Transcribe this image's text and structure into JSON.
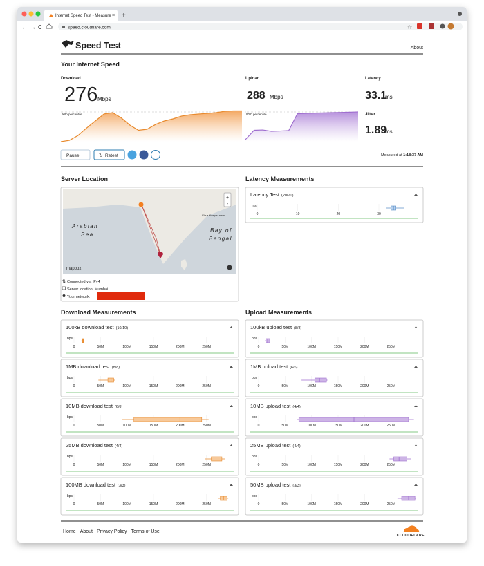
{
  "browser": {
    "tab_title": "Internet Speed Test - Measure",
    "url": "speed.cloudflare.com"
  },
  "header": {
    "title": "Speed Test",
    "about": "About"
  },
  "summary": {
    "heading": "Your Internet Speed",
    "download": {
      "label": "Download",
      "value": 276,
      "unit": "Mbps"
    },
    "upload": {
      "label": "Upload",
      "value": 288,
      "unit": "Mbps"
    },
    "latency": {
      "label": "Latency",
      "value": 33.1,
      "unit": "ms"
    },
    "jitter": {
      "label": "Jitter",
      "value": 1.89,
      "unit": "ms"
    }
  },
  "speed_charts": {
    "percentile_label": "90th percentile",
    "ylim": [
      0,
      300
    ],
    "download": [
      0,
      13,
      60,
      133,
      200,
      267,
      280,
      230,
      160,
      110,
      120,
      167,
      200,
      220,
      247,
      260,
      267,
      273,
      280,
      293,
      297,
      297
    ],
    "upload": [
      20,
      110,
      113,
      100,
      103,
      107,
      270,
      273,
      276,
      278,
      280,
      282,
      284,
      287
    ]
  },
  "buttons": {
    "pause": "Pause",
    "retest": "Retest"
  },
  "measured": {
    "label": "Measured at",
    "time": "1:18:37 AM"
  },
  "server": {
    "heading": "Server Location",
    "arabian_sea": [
      "Arabian",
      "Sea"
    ],
    "bay_of_bengal": [
      "Bay of",
      "Bengal"
    ],
    "city": "Visakhapatnam",
    "attribution": "mapbox",
    "info": [
      "Connected via IPv4",
      "Server location: Mumbai",
      "Your network:"
    ]
  },
  "latency": {
    "heading": "Latency Measurements",
    "title": "Latency Test",
    "count": "(20/20)",
    "unit": "ms",
    "xlim": [
      0,
      40
    ],
    "xticks": [
      0,
      10,
      20,
      30
    ],
    "box": [
      31.7,
      33,
      33.6,
      34.2,
      36.3
    ]
  },
  "download": {
    "heading": "Download Measurements",
    "unit": "bps",
    "xlim": [
      0,
      300000000
    ],
    "xticks": [
      0,
      {
        "value": 50000000,
        "label": "50M"
      },
      {
        "value": 100000000,
        "label": "100M"
      },
      {
        "value": 150000000,
        "label": "150M"
      },
      {
        "value": 200000000,
        "label": "200M"
      },
      {
        "value": 250000000,
        "label": "250M"
      }
    ],
    "tests": [
      {
        "title": "100kB download test",
        "count": "(10/10)",
        "box": [
          14000000,
          16000000,
          17000000,
          18000000,
          19000000
        ]
      },
      {
        "title": "1MB download test",
        "count": "(8/8)",
        "box": [
          46000000,
          64000000,
          70000000,
          75000000,
          78000000
        ]
      },
      {
        "title": "10MB download test",
        "count": "(6/6)",
        "box": [
          91000000,
          113000000,
          200000000,
          241000000,
          254000000
        ]
      },
      {
        "title": "25MB download test",
        "count": "(4/4)",
        "box": [
          247000000,
          259000000,
          268000000,
          279000000,
          285000000
        ]
      },
      {
        "title": "100MB download test",
        "count": "(3/3)",
        "box": [
          272000000,
          276000000,
          282000000,
          289000000,
          291000000
        ]
      }
    ]
  },
  "upload": {
    "heading": "Upload Measurements",
    "unit": "bps",
    "xlim": [
      0,
      300000000
    ],
    "xticks": [
      0,
      {
        "value": 50000000,
        "label": "50M"
      },
      {
        "value": 100000000,
        "label": "100M"
      },
      {
        "value": 150000000,
        "label": "150M"
      },
      {
        "value": 200000000,
        "label": "200M"
      },
      {
        "value": 250000000,
        "label": "250M"
      }
    ],
    "tests": [
      {
        "title": "100kB upload test",
        "count": "(8/8)",
        "box": [
          12000000,
          14000000,
          17000000,
          21000000,
          22000000
        ]
      },
      {
        "title": "1MB upload test",
        "count": "(6/6)",
        "box": [
          81000000,
          106000000,
          115000000,
          128000000,
          130000000
        ]
      },
      {
        "title": "10MB upload test",
        "count": "(4/4)",
        "box": [
          73000000,
          76000000,
          180000000,
          283000000,
          293000000
        ]
      },
      {
        "title": "25MB upload test",
        "count": "(4/4)",
        "box": [
          247000000,
          255000000,
          265000000,
          280000000,
          287000000
        ]
      },
      {
        "title": "50MB upload test",
        "count": "(3/3)",
        "box": [
          262000000,
          270000000,
          283000000,
          295000000,
          297000000
        ]
      }
    ]
  },
  "footer": {
    "links": [
      "Home",
      "About",
      "Privacy Policy",
      "Terms of Use"
    ],
    "brand": "CLOUDFLARE"
  }
}
